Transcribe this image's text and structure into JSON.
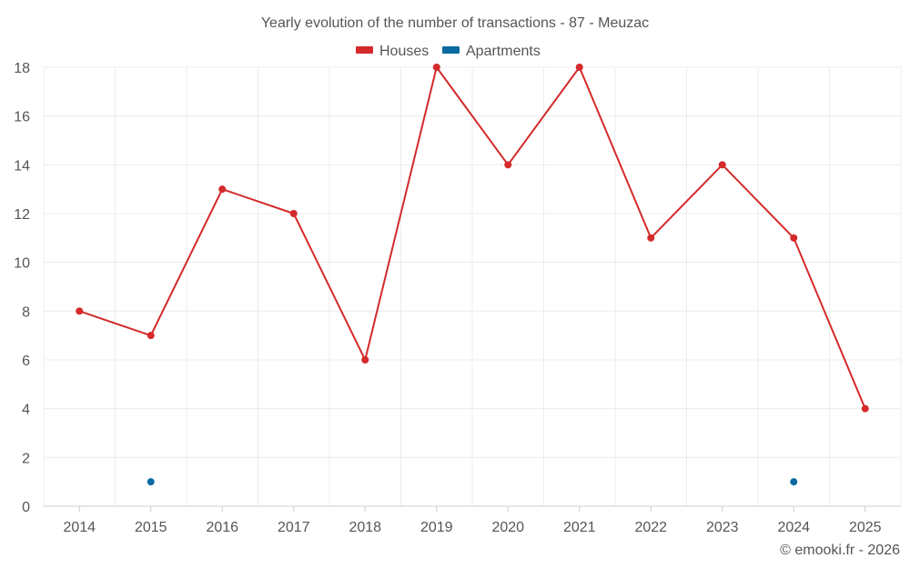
{
  "chart_data": {
    "type": "line",
    "title": "Yearly evolution of the number of transactions - 87 - Meuzac",
    "categories": [
      "2014",
      "2015",
      "2016",
      "2017",
      "2018",
      "2019",
      "2020",
      "2021",
      "2022",
      "2023",
      "2024",
      "2025"
    ],
    "series": [
      {
        "name": "Houses",
        "color": "#d42a2a",
        "values": [
          8,
          7,
          13,
          12,
          6,
          18,
          14,
          18,
          11,
          14,
          11,
          4
        ]
      },
      {
        "name": "Apartments",
        "color": "#0a6aa1",
        "values": [
          null,
          1,
          null,
          null,
          null,
          null,
          null,
          null,
          null,
          null,
          1,
          null
        ]
      }
    ],
    "ylim": [
      0,
      18
    ],
    "yticks": [
      0,
      2,
      4,
      6,
      8,
      10,
      12,
      14,
      16,
      18
    ],
    "grid": true,
    "legend": "top-center",
    "xlabel": "",
    "ylabel": ""
  },
  "footer": {
    "credit": "© emooki.fr - 2026"
  }
}
